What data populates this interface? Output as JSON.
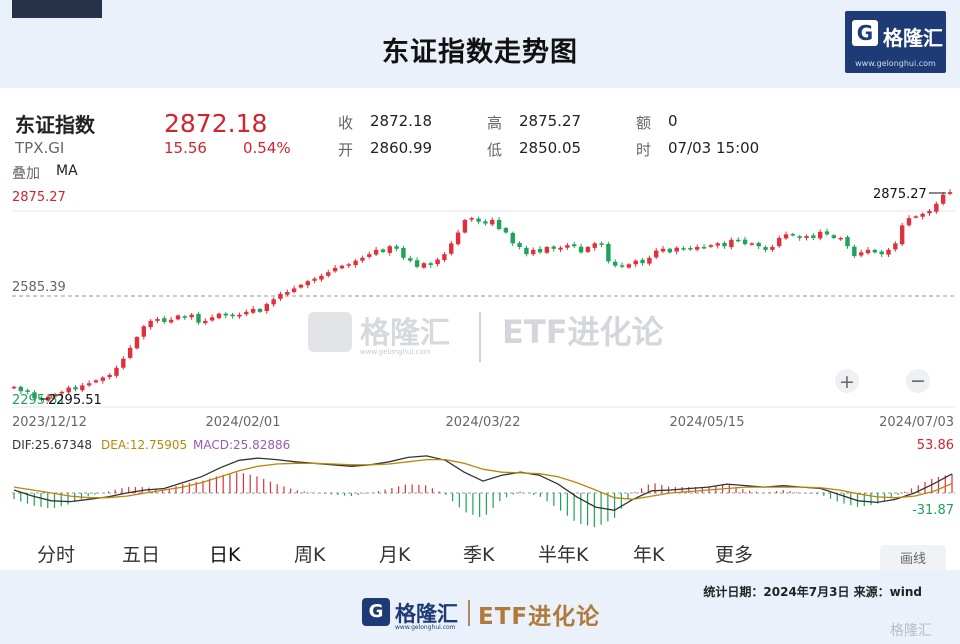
{
  "header": {
    "title": "东证指数走势图",
    "logo": {
      "mark": "G",
      "name": "格隆汇",
      "url": "www.gelonghui.com"
    }
  },
  "quote": {
    "name": "东证指数",
    "code": "TPX.GI",
    "price": "2872.18",
    "change": "15.56",
    "change_pct": "0.54%",
    "overlay_label": "叠加",
    "overlay_value": "MA",
    "fields": {
      "close_label": "收",
      "close": "2872.18",
      "open_label": "开",
      "open": "2860.99",
      "high_label": "高",
      "high": "2875.27",
      "low_label": "低",
      "low": "2850.05",
      "amount_label": "额",
      "amount": "0",
      "time_label": "时",
      "time": "07/03 15:00"
    }
  },
  "watermark": {
    "name": "格隆汇",
    "url": "www.gelonghui.com",
    "etf": "ETF进化论"
  },
  "colors": {
    "up": "#e0303a",
    "down": "#1fa35a",
    "dif": "#333333",
    "dea": "#b8860b",
    "macd": "#9b59b6",
    "accent": "#1e3b76"
  },
  "chart_data": [
    {
      "type": "candlestick",
      "y_top_label": "2875.27",
      "y_mid_label": "2585.39",
      "y_low_label": "2295.51",
      "max_annotation": "2875.27",
      "min_annotation": "2295.51",
      "x_tick_labels": [
        "2023/12/12",
        "2024/02/01",
        "2024/03/22",
        "2024/05/15",
        "2024/07/03"
      ],
      "ylim": [
        2295.51,
        2875.27
      ],
      "closes": [
        2332,
        2320,
        2318,
        2300,
        2296,
        2305,
        2312,
        2318,
        2330,
        2325,
        2336,
        2342,
        2350,
        2358,
        2365,
        2385,
        2410,
        2440,
        2470,
        2500,
        2515,
        2520,
        2512,
        2518,
        2530,
        2525,
        2532,
        2510,
        2515,
        2525,
        2535,
        2530,
        2528,
        2532,
        2540,
        2548,
        2540,
        2562,
        2575,
        2590,
        2595,
        2605,
        2615,
        2625,
        2632,
        2640,
        2650,
        2662,
        2668,
        2672,
        2682,
        2690,
        2700,
        2712,
        2706,
        2722,
        2715,
        2690,
        2682,
        2665,
        2675,
        2670,
        2685,
        2700,
        2730,
        2760,
        2795,
        2800,
        2790,
        2785,
        2795,
        2770,
        2760,
        2730,
        2720,
        2700,
        2712,
        2705,
        2720,
        2715,
        2718,
        2725,
        2722,
        2705,
        2720,
        2730,
        2726,
        2680,
        2668,
        2665,
        2672,
        2682,
        2675,
        2690,
        2710,
        2715,
        2705,
        2718,
        2716,
        2715,
        2720,
        2718,
        2725,
        2730,
        2722,
        2740,
        2738,
        2728,
        2730,
        2722,
        2712,
        2720,
        2745,
        2755,
        2752,
        2745,
        2750,
        2745,
        2762,
        2755,
        2745,
        2745,
        2722,
        2695,
        2705,
        2712,
        2705,
        2700,
        2712,
        2730,
        2780,
        2800,
        2805,
        2812,
        2820,
        2840,
        2865,
        2872.18
      ]
    },
    {
      "type": "macd",
      "dif_label": "DIF:25.67348",
      "dea_label": "DEA:12.75905",
      "macd_label": "MACD:25.82886",
      "ylim": [
        -31.87,
        53.86
      ],
      "y_top_label": "53.86",
      "y_bottom_label": "-31.87",
      "dif": [
        4,
        -4,
        -10,
        -11,
        -8,
        -5,
        0,
        4,
        6,
        14,
        22,
        34,
        44,
        47,
        45,
        42,
        40,
        38,
        36,
        38,
        42,
        48,
        50,
        44,
        28,
        16,
        24,
        28,
        24,
        12,
        -5,
        -18,
        -22,
        -8,
        3,
        4,
        6,
        8,
        12,
        10,
        8,
        10,
        8,
        6,
        -2,
        -10,
        -12,
        -8,
        0,
        12,
        25.67
      ],
      "dea": [
        8,
        4,
        0,
        -4,
        -6,
        -6,
        -4,
        0,
        4,
        8,
        14,
        22,
        30,
        36,
        39,
        40,
        40,
        39,
        38,
        38,
        39,
        42,
        45,
        45,
        40,
        32,
        28,
        27,
        26,
        22,
        14,
        4,
        -6,
        -8,
        -4,
        0,
        2,
        4,
        6,
        8,
        8,
        8,
        8,
        7,
        4,
        -1,
        -5,
        -6,
        -4,
        2,
        12.76
      ]
    }
  ],
  "tabs": [
    "分时",
    "五日",
    "日K",
    "周K",
    "月K",
    "季K",
    "半年K",
    "年K",
    "更多"
  ],
  "active_tab": "日K",
  "draw_button": "画线",
  "zoom_in": "+",
  "zoom_out": "−",
  "footer": {
    "note": "统计日期：2024年7月3日 来源：wind",
    "logo": {
      "mark": "G",
      "name": "格隆汇",
      "url": "www.gelonghui.com",
      "etf": "ETF进化论"
    },
    "watermark": "格隆汇"
  }
}
